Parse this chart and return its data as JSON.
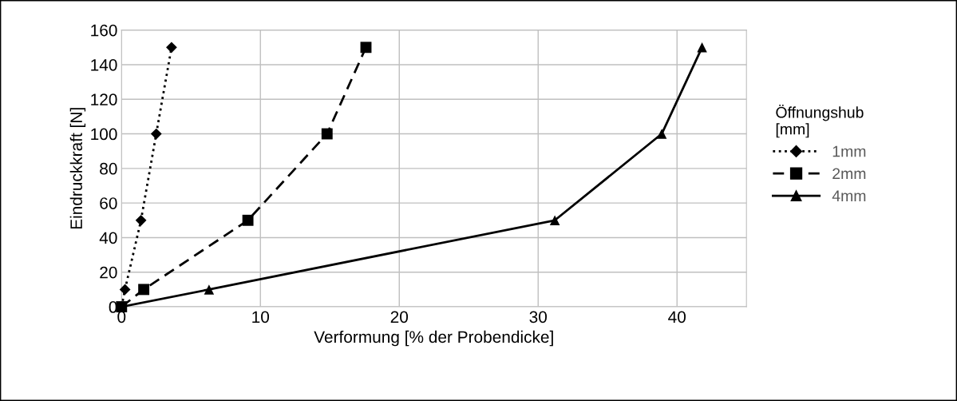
{
  "chart_data": {
    "type": "line",
    "xlabel": "Verformung [% der Probendicke]",
    "ylabel": "Eindruckkraft [N]",
    "legend_title": "Öffnungshub\n[mm]",
    "xlim": [
      0,
      45
    ],
    "xticks": [
      0,
      10,
      20,
      30,
      40
    ],
    "ylim": [
      0,
      160
    ],
    "yticks": [
      0,
      20,
      40,
      60,
      80,
      100,
      120,
      140,
      160
    ],
    "grid": true,
    "legend": "right",
    "series": [
      {
        "name": "1mm",
        "color": "#000000",
        "marker": "diamond",
        "line_style": "dotted",
        "x": [
          0,
          0.25,
          1.4,
          2.5,
          3.6
        ],
        "values": [
          0,
          10,
          50,
          100,
          150
        ]
      },
      {
        "name": "2mm",
        "color": "#000000",
        "marker": "square",
        "line_style": "dashed",
        "x": [
          0,
          1.6,
          9.1,
          14.8,
          17.6
        ],
        "values": [
          0,
          10,
          50,
          100,
          150
        ]
      },
      {
        "name": "4mm",
        "color": "#000000",
        "marker": "triangle",
        "line_style": "solid",
        "x": [
          0,
          6.3,
          31.2,
          38.9,
          41.8
        ],
        "values": [
          0,
          10,
          50,
          100,
          150
        ]
      }
    ]
  }
}
